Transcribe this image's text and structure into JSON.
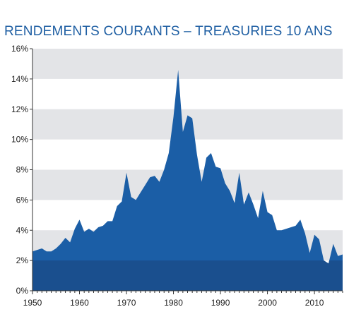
{
  "chart_data": {
    "type": "area",
    "title": "RENDEMENTS COURANTS – TREASURIES 10 ANS",
    "xlabel": "",
    "ylabel": "",
    "xlim": [
      1950,
      2016
    ],
    "ylim": [
      0,
      16
    ],
    "x_ticks": [
      1950,
      1960,
      1970,
      1980,
      1990,
      2000,
      2010
    ],
    "x_tick_labels": [
      "1950",
      "1960",
      "1970",
      "1980",
      "1990",
      "2000",
      "2010"
    ],
    "y_ticks": [
      0,
      2,
      4,
      6,
      8,
      10,
      12,
      14,
      16
    ],
    "y_tick_labels": [
      "0%",
      "2%",
      "4%",
      "6%",
      "8%",
      "10%",
      "12%",
      "14%",
      "16%"
    ],
    "grid": "horizontal bands",
    "series": [
      {
        "x": [
          1950,
          1951,
          1952,
          1953,
          1954,
          1955,
          1956,
          1957,
          1958,
          1959,
          1960,
          1961,
          1962,
          1963,
          1964,
          1965,
          1966,
          1967,
          1968,
          1969,
          1970,
          1971,
          1972,
          1973,
          1974,
          1975,
          1976,
          1977,
          1978,
          1979,
          1980,
          1981,
          1982,
          1983,
          1984,
          1985,
          1986,
          1987,
          1988,
          1989,
          1990,
          1991,
          1992,
          1993,
          1994,
          1995,
          1996,
          1997,
          1998,
          1999,
          2000,
          2001,
          2002,
          2003,
          2004,
          2005,
          2006,
          2007,
          2008,
          2009,
          2010,
          2011,
          2012,
          2013,
          2014,
          2015,
          2016
        ],
        "values": [
          2.6,
          2.7,
          2.8,
          2.6,
          2.6,
          2.8,
          3.1,
          3.5,
          3.2,
          4.1,
          4.7,
          3.9,
          4.1,
          3.9,
          4.2,
          4.3,
          4.6,
          4.6,
          5.6,
          5.9,
          7.8,
          6.2,
          6.0,
          6.5,
          7.0,
          7.5,
          7.6,
          7.2,
          8.0,
          9.1,
          11.5,
          14.6,
          10.5,
          11.6,
          11.4,
          9.0,
          7.2,
          8.8,
          9.1,
          8.2,
          8.1,
          7.1,
          6.6,
          5.8,
          7.8,
          5.7,
          6.5,
          5.7,
          4.8,
          6.6,
          5.2,
          5.0,
          4.0,
          4.0,
          4.1,
          4.2,
          4.3,
          4.7,
          3.8,
          2.5,
          3.7,
          3.4,
          2.0,
          1.8,
          3.1,
          2.3,
          2.4
        ]
      }
    ],
    "colors": {
      "area": "#1b5ea6",
      "area_lower": "#1a4f8e",
      "band": "#e3e4e7",
      "title": "#1f5fa3",
      "axis": "#333333"
    }
  }
}
